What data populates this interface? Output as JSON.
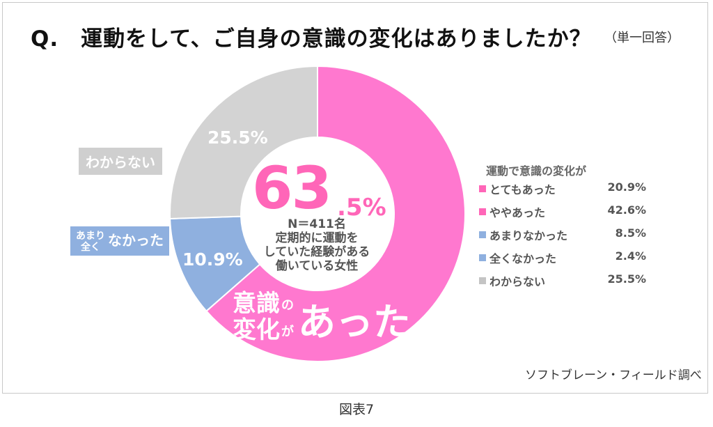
{
  "title": "Q.　運動をして、ご自身の意識の変化はありましたか？",
  "subtitle": "（単一回答）",
  "chart_data": {
    "type": "pie",
    "categories": [
      "とてもあった",
      "ややあった",
      "あまりなかった",
      "全くなかった",
      "わからない"
    ],
    "values": [
      20.9,
      42.6,
      8.5,
      2.4,
      25.5
    ],
    "colors": [
      "#ff78cf",
      "#ff78cf",
      "#8fb0df",
      "#8fb0df",
      "#d3d3d3"
    ],
    "groups": [
      {
        "label": "意識の変化があった",
        "value": 63.5,
        "color": "#ff78cf"
      },
      {
        "label": "あまり全くなかった",
        "value": 10.9,
        "color": "#8fb0df"
      },
      {
        "label": "わからない",
        "value": 25.5,
        "color": "#d3d3d3"
      }
    ],
    "legend_title": "運動で意識の変化が",
    "legend_placement": "right"
  },
  "labels": {
    "wakaranai_callout": "わからない",
    "wakaranai_pct": "25.5%",
    "nakatta_small_1": "あまり",
    "nakatta_small_2": "全く",
    "nakatta_main": "なかった",
    "nakatta_pct": "10.9%",
    "center_big": "63",
    "center_dec": ".5%",
    "center_n": "N＝411名",
    "center_line1": "定期的に運動を",
    "center_line2": "していた経験がある",
    "center_line3": "働いている女性",
    "aware_1": "意識",
    "aware_no": "の",
    "aware_2": "変化",
    "aware_ga": "が",
    "aware_3": "あった"
  },
  "legend": [
    {
      "label": "とてもあった",
      "value": "20.9%",
      "color": "#ff66b8"
    },
    {
      "label": "ややあった",
      "value": "42.6%",
      "color": "#ff66b8"
    },
    {
      "label": "あまりなかった",
      "value": "8.5%",
      "color": "#8fb0df"
    },
    {
      "label": "全くなかった",
      "value": "2.4%",
      "color": "#8fb0df"
    },
    {
      "label": "わからない",
      "value": "25.5%",
      "color": "#c4c4c4"
    }
  ],
  "source": "ソフトブレーン・フィールド調べ",
  "figure_label": "図表7"
}
